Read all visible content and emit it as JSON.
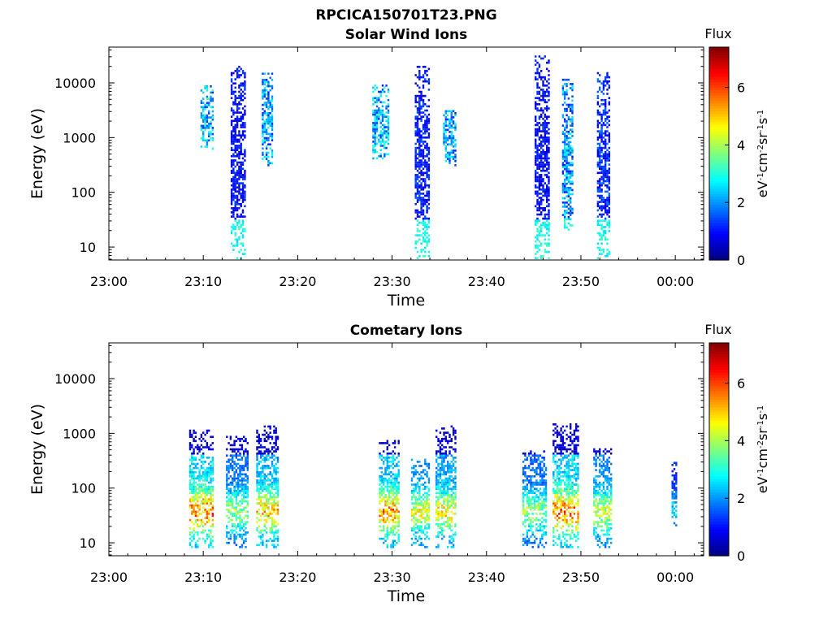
{
  "figure_title": "RPCICA150701T23.PNG",
  "colormap": [
    "#00007f",
    "#0000ff",
    "#007fff",
    "#00ffff",
    "#7fff7f",
    "#ffff00",
    "#ff7f00",
    "#ff0000",
    "#7f0000"
  ],
  "chart_data": [
    {
      "type": "heatmap",
      "title": "Solar Wind Ions",
      "xlabel": "Time",
      "ylabel": "Energy (eV)",
      "x_ticks": [
        "23:00",
        "23:10",
        "23:20",
        "23:30",
        "23:40",
        "23:50",
        "00:00"
      ],
      "x_range_min": [
        0,
        63
      ],
      "y_scale": "log",
      "y_ticks": [
        "10",
        "100",
        "1000",
        "10000"
      ],
      "y_range": [
        5.8,
        45000
      ],
      "colorbar": {
        "label": "Flux",
        "unit": "eV-1cm-2sr-1s-1",
        "ticks": [
          "0",
          "2",
          "4",
          "6"
        ],
        "range": [
          0,
          7.4
        ]
      },
      "grid": false,
      "bursts": [
        {
          "t_start": 9.7,
          "t_end": 11.0,
          "e_low": 600,
          "e_high": 9000,
          "flux": 2.4
        },
        {
          "t_start": 12.9,
          "t_end": 14.4,
          "e_low": 6,
          "e_high": 20000,
          "flux": 1.0
        },
        {
          "t_start": 16.2,
          "t_end": 17.2,
          "e_low": 300,
          "e_high": 15000,
          "flux": 2.2
        },
        {
          "t_start": 27.9,
          "t_end": 29.5,
          "e_low": 400,
          "e_high": 9000,
          "flux": 2.3
        },
        {
          "t_start": 32.4,
          "t_end": 34.0,
          "e_low": 6,
          "e_high": 20000,
          "flux": 1.1
        },
        {
          "t_start": 35.4,
          "t_end": 36.7,
          "e_low": 300,
          "e_high": 3000,
          "flux": 2.2
        },
        {
          "t_start": 45.1,
          "t_end": 46.6,
          "e_low": 6,
          "e_high": 30000,
          "flux": 1.0
        },
        {
          "t_start": 48.0,
          "t_end": 49.2,
          "e_low": 20,
          "e_high": 12000,
          "flux": 2.0
        },
        {
          "t_start": 51.7,
          "t_end": 53.1,
          "e_low": 6,
          "e_high": 15000,
          "flux": 1.3
        }
      ]
    },
    {
      "type": "heatmap",
      "title": "Cometary Ions",
      "xlabel": "Time",
      "ylabel": "Energy (eV)",
      "x_ticks": [
        "23:00",
        "23:10",
        "23:20",
        "23:30",
        "23:40",
        "23:50",
        "00:00"
      ],
      "x_range_min": [
        0,
        63
      ],
      "y_scale": "log",
      "y_ticks": [
        "10",
        "100",
        "1000",
        "10000"
      ],
      "y_range": [
        5.8,
        45000
      ],
      "colorbar": {
        "label": "Flux",
        "unit": "eV-1cm-2sr-1s-1",
        "ticks": [
          "0",
          "2",
          "4",
          "6"
        ],
        "range": [
          0,
          7.4
        ]
      },
      "grid": false,
      "bursts": [
        {
          "t_start": 8.5,
          "t_end": 11.0,
          "e_low": 8,
          "e_high": 1100,
          "flux": 5.8
        },
        {
          "t_start": 12.4,
          "t_end": 14.6,
          "e_low": 8,
          "e_high": 900,
          "flux": 4.0
        },
        {
          "t_start": 15.6,
          "t_end": 17.8,
          "e_low": 8,
          "e_high": 1300,
          "flux": 5.2
        },
        {
          "t_start": 28.6,
          "t_end": 30.6,
          "e_low": 8,
          "e_high": 700,
          "flux": 5.5
        },
        {
          "t_start": 32.0,
          "t_end": 33.9,
          "e_low": 8,
          "e_high": 320,
          "flux": 4.6
        },
        {
          "t_start": 34.6,
          "t_end": 36.8,
          "e_low": 8,
          "e_high": 1300,
          "flux": 4.8
        },
        {
          "t_start": 43.8,
          "t_end": 46.4,
          "e_low": 8,
          "e_high": 450,
          "flux": 3.9
        },
        {
          "t_start": 47.0,
          "t_end": 49.8,
          "e_low": 8,
          "e_high": 1400,
          "flux": 5.8
        },
        {
          "t_start": 51.3,
          "t_end": 53.2,
          "e_low": 8,
          "e_high": 500,
          "flux": 4.4
        },
        {
          "t_start": 59.6,
          "t_end": 60.1,
          "e_low": 20,
          "e_high": 300,
          "flux": 2.6
        }
      ]
    }
  ]
}
